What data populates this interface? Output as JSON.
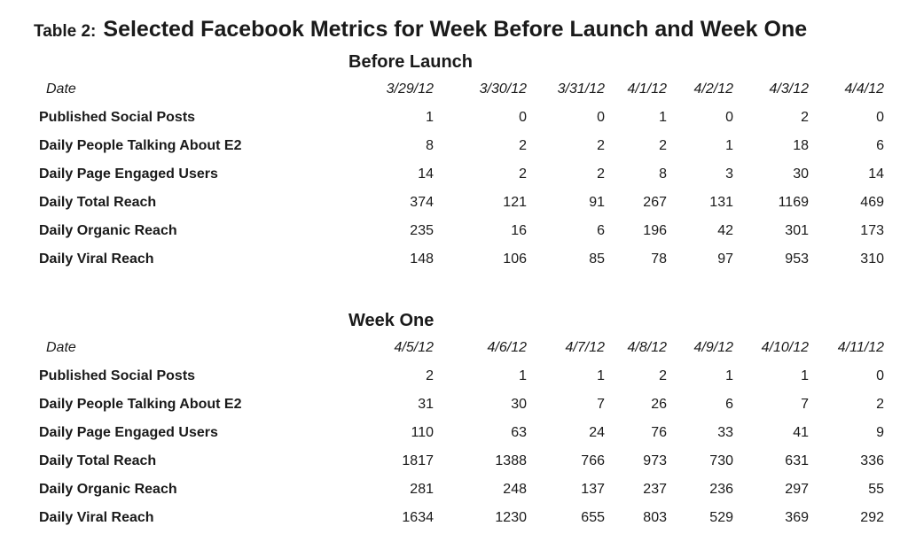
{
  "page": {
    "caption_prefix": "Table 2:",
    "title": "Selected Facebook Metrics for Week Before Launch and Week One"
  },
  "chart_data": {
    "type": "table",
    "title": "Selected Facebook Metrics for Week Before Launch and Week One",
    "sections": [
      {
        "name": "Before Launch",
        "date_label": "Date",
        "dates": [
          "3/29/12",
          "3/30/12",
          "3/31/12",
          "4/1/12",
          "4/2/12",
          "4/3/12",
          "4/4/12"
        ],
        "rows": [
          {
            "label": "Published Social Posts",
            "values": [
              1,
              0,
              0,
              1,
              0,
              2,
              0
            ]
          },
          {
            "label": "Daily People Talking About E2",
            "values": [
              8,
              2,
              2,
              2,
              1,
              18,
              6
            ]
          },
          {
            "label": "Daily Page Engaged Users",
            "values": [
              14,
              2,
              2,
              8,
              3,
              30,
              14
            ]
          },
          {
            "label": "Daily Total Reach",
            "values": [
              374,
              121,
              91,
              267,
              131,
              1169,
              469
            ]
          },
          {
            "label": "Daily Organic Reach",
            "values": [
              235,
              16,
              6,
              196,
              42,
              301,
              173
            ]
          },
          {
            "label": "Daily Viral Reach",
            "values": [
              148,
              106,
              85,
              78,
              97,
              953,
              310
            ]
          }
        ]
      },
      {
        "name": "Week One",
        "date_label": "Date",
        "dates": [
          "4/5/12",
          "4/6/12",
          "4/7/12",
          "4/8/12",
          "4/9/12",
          "4/10/12",
          "4/11/12"
        ],
        "rows": [
          {
            "label": "Published Social Posts",
            "values": [
              2,
              1,
              1,
              2,
              1,
              1,
              0
            ]
          },
          {
            "label": "Daily People Talking About E2",
            "values": [
              31,
              30,
              7,
              26,
              6,
              7,
              2
            ]
          },
          {
            "label": "Daily Page Engaged Users",
            "values": [
              110,
              63,
              24,
              76,
              33,
              41,
              9
            ]
          },
          {
            "label": "Daily Total Reach",
            "values": [
              1817,
              1388,
              766,
              973,
              730,
              631,
              336
            ]
          },
          {
            "label": "Daily Organic Reach",
            "values": [
              281,
              248,
              137,
              237,
              236,
              297,
              55
            ]
          },
          {
            "label": "Daily Viral Reach",
            "values": [
              1634,
              1230,
              655,
              803,
              529,
              369,
              292
            ]
          }
        ]
      }
    ]
  }
}
